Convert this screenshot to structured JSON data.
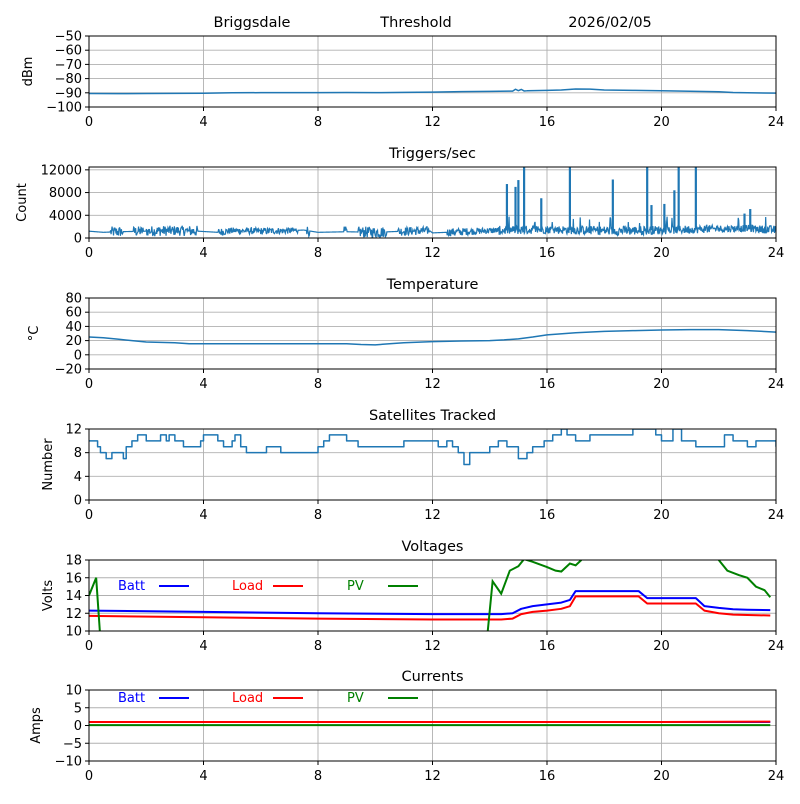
{
  "header": {
    "site": "Briggsdale",
    "mode": "Threshold",
    "date": "2026/02/05"
  },
  "chart_data": [
    {
      "id": "threshold",
      "type": "line",
      "title": "",
      "xlabel": "",
      "ylabel": "dBm",
      "xlim": [
        0,
        24
      ],
      "ylim": [
        -100,
        -50
      ],
      "xticks": [
        0,
        4,
        8,
        12,
        16,
        20,
        24
      ],
      "yticks": [
        -100,
        -90,
        -80,
        -70,
        -60,
        -50
      ],
      "ytick_labels": [
        "−100",
        "−90",
        "−80",
        "−70",
        "−60",
        "−50"
      ],
      "grid": true,
      "series": [
        {
          "name": "Threshold",
          "color": "#1f77b4",
          "x": [
            0,
            1,
            2,
            3,
            4,
            5,
            6,
            7,
            8,
            9,
            10,
            11,
            12,
            13,
            14,
            14.8,
            14.9,
            15.0,
            15.1,
            15.2,
            15.3,
            16,
            16.5,
            17,
            17.5,
            18,
            19,
            20,
            21,
            22,
            22.5,
            23,
            24
          ],
          "y": [
            -90.5,
            -90.6,
            -90.5,
            -90.4,
            -90.3,
            -90.0,
            -89.9,
            -89.9,
            -89.9,
            -89.8,
            -89.9,
            -89.7,
            -89.5,
            -89.2,
            -89.0,
            -88.8,
            -87.5,
            -88.5,
            -87.6,
            -88.7,
            -88.6,
            -88.3,
            -88.0,
            -87.3,
            -87.4,
            -88.0,
            -88.3,
            -88.6,
            -88.9,
            -89.3,
            -89.8,
            -90.0,
            -90.2
          ]
        }
      ]
    },
    {
      "id": "triggers",
      "type": "line",
      "title": "Triggers/sec",
      "xlabel": "",
      "ylabel": "Count",
      "xlim": [
        0,
        24
      ],
      "ylim": [
        0,
        12500
      ],
      "xticks": [
        0,
        4,
        8,
        12,
        16,
        20,
        24
      ],
      "yticks": [
        0,
        4000,
        8000,
        12000
      ],
      "ytick_labels": [
        "0",
        "4000",
        "8000",
        "12000"
      ],
      "grid": true,
      "series": [
        {
          "name": "Triggers",
          "color": "#1f77b4",
          "baseline": [
            [
              0,
              1200
            ],
            [
              0.5,
              1000
            ],
            [
              1,
              1100
            ],
            [
              2,
              1200
            ],
            [
              3,
              1300
            ],
            [
              3.8,
              1200
            ],
            [
              4.5,
              1000
            ],
            [
              5,
              1300
            ],
            [
              6,
              1200
            ],
            [
              7,
              1300
            ],
            [
              7.5,
              1400
            ],
            [
              8,
              1000
            ],
            [
              9,
              1100
            ],
            [
              10,
              1000
            ],
            [
              11,
              1200
            ],
            [
              11.9,
              1300
            ],
            [
              12,
              900
            ],
            [
              13,
              1100
            ],
            [
              14,
              1300
            ],
            [
              15,
              1400
            ],
            [
              16,
              1500
            ],
            [
              17,
              1400
            ],
            [
              18,
              1300
            ],
            [
              19,
              1300
            ],
            [
              20,
              1400
            ],
            [
              21,
              1500
            ],
            [
              22,
              1600
            ],
            [
              23,
              1700
            ],
            [
              24,
              1400
            ]
          ],
          "noise_bands": [
            [
              0.75,
              1.2,
              2200
            ],
            [
              1.55,
              1.9,
              2200
            ],
            [
              2.0,
              3.45,
              2300
            ],
            [
              3.5,
              3.8,
              2400
            ],
            [
              4.5,
              7.3,
              1700
            ],
            [
              7.6,
              7.7,
              2400
            ],
            [
              8.9,
              9.0,
              2200
            ],
            [
              9.4,
              10.4,
              2200
            ],
            [
              10.8,
              11.9,
              2000
            ],
            [
              12.5,
              14.3,
              1700
            ],
            [
              14.3,
              24,
              2200
            ]
          ],
          "spikes": [
            [
              14.6,
              9500
            ],
            [
              14.9,
              9000
            ],
            [
              15.0,
              10200
            ],
            [
              15.2,
              12500
            ],
            [
              15.8,
              7000
            ],
            [
              16.8,
              12500
            ],
            [
              18.3,
              10300
            ],
            [
              19.5,
              12500
            ],
            [
              19.65,
              5800
            ],
            [
              20.1,
              6000
            ],
            [
              20.45,
              8400
            ],
            [
              20.6,
              12500
            ],
            [
              21.2,
              12500
            ],
            [
              22.9,
              4300
            ],
            [
              23.1,
              5100
            ]
          ]
        }
      ]
    },
    {
      "id": "temperature",
      "type": "line",
      "title": "Temperature",
      "xlabel": "",
      "ylabel": "°C",
      "xlim": [
        0,
        24
      ],
      "ylim": [
        -20,
        80
      ],
      "xticks": [
        0,
        4,
        8,
        12,
        16,
        20,
        24
      ],
      "yticks": [
        -20,
        0,
        20,
        40,
        60,
        80
      ],
      "ytick_labels": [
        "−20",
        "0",
        "20",
        "40",
        "60",
        "80"
      ],
      "grid": true,
      "series": [
        {
          "name": "Temperature",
          "color": "#1f77b4",
          "x": [
            0,
            0.5,
            1,
            1.5,
            2,
            3,
            3.5,
            4,
            6,
            8,
            9,
            9.5,
            10,
            10.5,
            11,
            12,
            13,
            14,
            14.5,
            15,
            15.5,
            16,
            17,
            18,
            19,
            20,
            21,
            22,
            23,
            24
          ],
          "y": [
            25,
            24,
            22,
            20,
            18,
            17,
            15.5,
            15.5,
            15.5,
            15.5,
            15.5,
            14.5,
            14,
            15.5,
            17,
            18.5,
            19.5,
            20,
            21,
            22.5,
            25,
            28,
            31,
            33,
            34,
            35,
            35.5,
            35.5,
            34,
            32
          ]
        }
      ]
    },
    {
      "id": "satellites",
      "type": "line",
      "title": "Satellites Tracked",
      "xlabel": "",
      "ylabel": "Number",
      "xlim": [
        0,
        24
      ],
      "ylim": [
        0,
        12
      ],
      "xticks": [
        0,
        4,
        8,
        12,
        16,
        20,
        24
      ],
      "yticks": [
        0,
        4,
        8,
        12
      ],
      "ytick_labels": [
        "0",
        "4",
        "8",
        "12"
      ],
      "grid": true,
      "series": [
        {
          "name": "Satellites",
          "color": "#1f77b4",
          "x": [
            0,
            0.3,
            0.4,
            0.5,
            0.6,
            0.8,
            0.9,
            1.2,
            1.3,
            1.4,
            1.5,
            1.7,
            2.0,
            2.5,
            2.7,
            2.8,
            3.0,
            3.3,
            3.6,
            3.9,
            4.0,
            4.5,
            4.7,
            5.0,
            5.1,
            5.3,
            5.5,
            6.2,
            6.7,
            8.0,
            8.2,
            8.4,
            9.0,
            9.4,
            10.5,
            11.0,
            11.5,
            12.0,
            12.2,
            12.5,
            12.7,
            12.9,
            13.1,
            13.3,
            14.0,
            14.3,
            14.6,
            15.0,
            15.3,
            15.5,
            15.9,
            16.2,
            16.5,
            16.7,
            17.0,
            17.5,
            18.2,
            19.0,
            19.4,
            19.8,
            20.0,
            20.4,
            20.7,
            21.2,
            21.9,
            22.2,
            22.5,
            23.0,
            23.3,
            24
          ],
          "y": [
            10,
            9,
            8,
            8,
            7,
            8,
            8,
            7,
            9,
            9,
            10,
            11,
            10,
            11,
            10,
            11,
            10,
            9,
            9,
            10,
            11,
            10,
            9,
            10,
            11,
            9,
            8,
            9,
            8,
            9,
            10,
            11,
            10,
            9,
            9,
            10,
            10,
            10,
            9,
            10,
            9,
            8,
            6,
            8,
            9,
            10,
            9,
            7,
            8,
            9,
            10,
            11,
            12,
            11,
            10,
            11,
            11,
            12,
            12,
            11,
            10,
            12,
            10,
            9,
            9,
            11,
            10,
            9,
            10,
            9
          ]
        }
      ]
    },
    {
      "id": "voltages",
      "type": "line",
      "title": "Voltages",
      "xlabel": "",
      "ylabel": "Volts",
      "xlim": [
        0,
        24
      ],
      "ylim": [
        10,
        18
      ],
      "xticks": [
        0,
        4,
        8,
        12,
        16,
        20,
        24
      ],
      "yticks": [
        10,
        12,
        14,
        16,
        18
      ],
      "ytick_labels": [
        "10",
        "12",
        "14",
        "16",
        "18"
      ],
      "grid": true,
      "legend": "top-left-inline",
      "series": [
        {
          "name": "Batt",
          "color": "#0000ff",
          "x": [
            0,
            4,
            8,
            12,
            14.4,
            14.8,
            15.1,
            15.5,
            16,
            16.5,
            16.8,
            17.0,
            19.2,
            19.5,
            21.2,
            21.5,
            22.0,
            22.5,
            23.0,
            23.8
          ],
          "y": [
            12.3,
            12.15,
            12.0,
            11.9,
            11.9,
            12.0,
            12.5,
            12.8,
            13.0,
            13.2,
            13.5,
            14.5,
            14.5,
            13.7,
            13.7,
            12.8,
            12.6,
            12.45,
            12.4,
            12.35
          ]
        },
        {
          "name": "Load",
          "color": "#ff0000",
          "x": [
            0,
            4,
            8,
            12,
            14.4,
            14.8,
            15.1,
            15.5,
            16,
            16.5,
            16.8,
            17.0,
            19.2,
            19.5,
            21.2,
            21.5,
            22.0,
            22.5,
            23.0,
            23.8
          ],
          "y": [
            11.7,
            11.55,
            11.4,
            11.3,
            11.3,
            11.4,
            11.9,
            12.15,
            12.3,
            12.5,
            12.8,
            13.9,
            13.9,
            13.1,
            13.1,
            12.3,
            12.0,
            11.85,
            11.8,
            11.75
          ]
        },
        {
          "name": "PV",
          "color": "#008000",
          "segments": [
            {
              "x": [
                0,
                0.25,
                0.4
              ],
              "y": [
                14.0,
                16.0,
                9.0
              ]
            },
            {
              "x": [
                13.9,
                14.1,
                14.4,
                14.7,
                15.0,
                15.2,
                15.5,
                16.0,
                16.3,
                16.5,
                16.8,
                17.0,
                17.2
              ],
              "y": [
                9.0,
                15.6,
                14.2,
                16.8,
                17.3,
                18.1,
                17.8,
                17.2,
                16.8,
                16.7,
                17.6,
                17.4,
                18.0
              ]
            },
            {
              "x": [
                22.0,
                22.3,
                22.7,
                23.0,
                23.3,
                23.6,
                23.8
              ],
              "y": [
                18.0,
                16.8,
                16.3,
                16.0,
                15.0,
                14.6,
                13.8
              ]
            }
          ]
        }
      ]
    },
    {
      "id": "currents",
      "type": "line",
      "title": "Currents",
      "xlabel": "",
      "ylabel": "Amps",
      "xlim": [
        0,
        24
      ],
      "ylim": [
        -10,
        10
      ],
      "xticks": [
        0,
        4,
        8,
        12,
        16,
        20,
        24
      ],
      "yticks": [
        -10,
        -5,
        0,
        5,
        10
      ],
      "ytick_labels": [
        "−10",
        "−5",
        "0",
        "5",
        "10"
      ],
      "grid": true,
      "legend": "top-left-inline",
      "series": [
        {
          "name": "Batt",
          "color": "#0000ff",
          "x": [
            0,
            23.8
          ],
          "y": [
            1.0,
            1.0
          ]
        },
        {
          "name": "Load",
          "color": "#ff0000",
          "x": [
            0,
            12,
            16,
            20,
            23.8
          ],
          "y": [
            1.0,
            1.0,
            1.0,
            1.0,
            1.1
          ]
        },
        {
          "name": "PV",
          "color": "#008000",
          "x": [
            0,
            23.8
          ],
          "y": [
            0.1,
            0.1
          ]
        }
      ]
    }
  ]
}
